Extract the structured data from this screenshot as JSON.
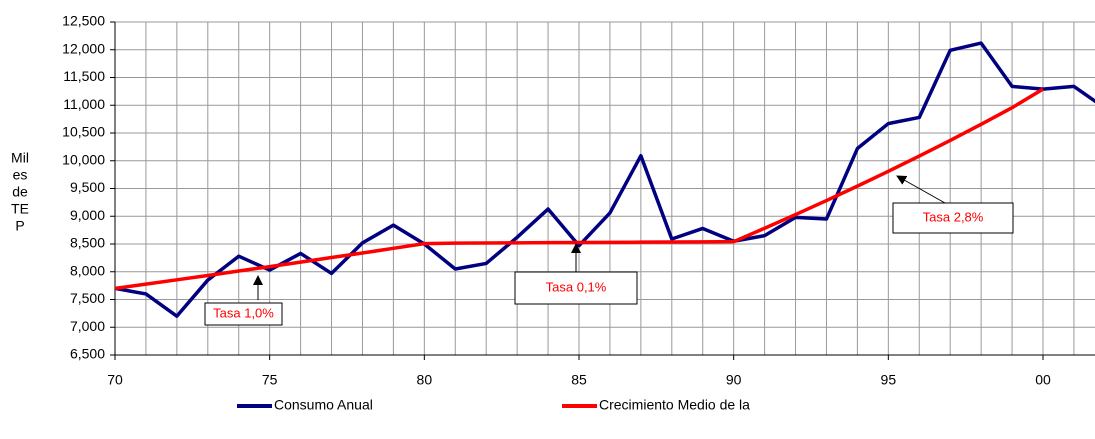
{
  "chart_data": {
    "type": "line",
    "y_label_lines": [
      "Mil",
      "es",
      "de",
      "TE",
      "P"
    ],
    "categories": [
      "70",
      null,
      null,
      null,
      null,
      "75",
      null,
      null,
      null,
      null,
      "80",
      null,
      null,
      null,
      null,
      "85",
      null,
      null,
      null,
      null,
      "90",
      null,
      null,
      null,
      null,
      "95",
      null,
      null,
      null,
      null,
      "00",
      null,
      null
    ],
    "series": [
      {
        "name": "Consumo Anual",
        "color": "#000080",
        "values": [
          7700,
          7600,
          7200,
          7850,
          8280,
          8030,
          8330,
          7970,
          8520,
          8840,
          8500,
          8050,
          8150,
          8620,
          9130,
          8470,
          9060,
          10090,
          8590,
          8780,
          8550,
          8650,
          8980,
          8950,
          10220,
          10670,
          10780,
          11990,
          12120,
          11340,
          11290,
          11340,
          10950
        ]
      },
      {
        "name": "Crecimiento Medio de la",
        "color": "#ff0000",
        "values": [
          7700,
          7777,
          7855,
          7933,
          8013,
          8093,
          8174,
          8256,
          8338,
          8422,
          8506,
          8515,
          8518,
          8521,
          8524,
          8527,
          8530,
          8533,
          8536,
          8539,
          8542,
          8784,
          9030,
          9283,
          9543,
          9810,
          10085,
          10367,
          10657,
          10956,
          11290,
          null,
          null
        ]
      }
    ],
    "annotations": [
      "Tasa 1,0%",
      "Tasa 0,1%",
      "Tasa 2,8%"
    ],
    "ylim": [
      6500,
      12500
    ],
    "yticks": [
      {
        "value": 6500,
        "label": "6,500"
      },
      {
        "value": 7000,
        "label": "7,000"
      },
      {
        "value": 7500,
        "label": "7,500"
      },
      {
        "value": 8000,
        "label": "8,000"
      },
      {
        "value": 8500,
        "label": "8,500"
      },
      {
        "value": 9000,
        "label": "9,000"
      },
      {
        "value": 9500,
        "label": "9,500"
      },
      {
        "value": 10000,
        "label": "10,000"
      },
      {
        "value": 10500,
        "label": "10,500"
      },
      {
        "value": 11000,
        "label": "11,000"
      },
      {
        "value": 11500,
        "label": "11,500"
      },
      {
        "value": 12000,
        "label": "12,000"
      },
      {
        "value": 12500,
        "label": "12,500"
      }
    ],
    "grid": true
  }
}
